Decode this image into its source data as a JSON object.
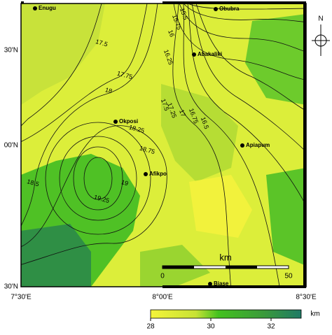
{
  "map": {
    "towns": [
      "Enugu",
      "Obubra",
      "Abakaliki",
      "Okposi",
      "Afikpo",
      "Apiapum",
      "Biase"
    ],
    "lat_labels": [
      "30'N",
      "00'N",
      "30'N"
    ],
    "lon_labels": [
      "7°30'E",
      "8°00'E",
      "8°30'E"
    ],
    "north": "N",
    "contours": [
      17.5,
      17.75,
      18,
      18.25,
      18.5,
      18.75,
      19,
      19.25,
      17.5,
      17.25,
      17,
      16.75,
      16.5,
      16.25,
      16,
      15.75,
      15.5
    ],
    "scale": {
      "unit": "km",
      "start": 0,
      "end": 50
    },
    "colorbar": {
      "unit": "km",
      "lim": [
        28,
        33
      ],
      "ticks": [
        28,
        30,
        32
      ]
    }
  }
}
